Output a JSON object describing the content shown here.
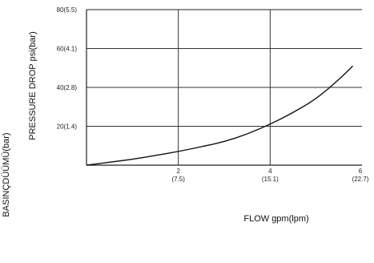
{
  "chart_data": {
    "type": "line",
    "xlabel": "FLOW gpm(lpm)",
    "ylabel": "PRESSURE DROP psi(bar)",
    "side_label": "BASINÇDÜÜMÜ(bar)",
    "xlim": [
      0,
      6
    ],
    "ylim": [
      0,
      80
    ],
    "grid": true,
    "x_ticks": [
      {
        "value": 2,
        "top": "2",
        "bottom": "(7.5)"
      },
      {
        "value": 4,
        "top": "4",
        "bottom": "(15.1)"
      },
      {
        "value": 6,
        "top": "6",
        "bottom": "(22.7)"
      }
    ],
    "y_ticks": [
      {
        "value": 20,
        "label": "20(1.4)"
      },
      {
        "value": 40,
        "label": "40(2.8)"
      },
      {
        "value": 60,
        "label": "60(4.1)"
      },
      {
        "value": 80,
        "label": "80(5.5)"
      }
    ],
    "series": [
      {
        "x": [
          0,
          0.5,
          1.0,
          1.5,
          2.0,
          2.5,
          3.0,
          3.5,
          4.0,
          4.5,
          5.0,
          5.5,
          5.8
        ],
        "y": [
          0,
          1.5,
          3,
          5,
          7,
          9.5,
          12,
          16,
          21,
          27,
          34,
          44,
          51
        ]
      }
    ]
  },
  "colors": {
    "line": "#111111",
    "grid": "#333333",
    "frame": "#222222"
  }
}
